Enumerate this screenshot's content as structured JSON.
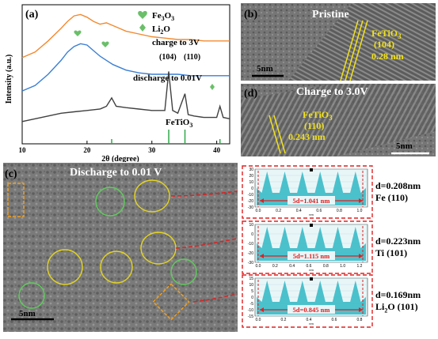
{
  "panel_a": {
    "label": "(a)",
    "ylabel": "Intensity (a.u.)",
    "xlabel": "2θ (degree)",
    "x_ticks": [
      "10",
      "20",
      "30",
      "40"
    ],
    "legend": [
      {
        "name": "Fe2O3",
        "sub": "3",
        "marker": "heart",
        "color": "#6abf69"
      },
      {
        "name": "Li2O",
        "sub": "2",
        "marker": "diamond",
        "color": "#6abf69"
      }
    ],
    "curve_labels": {
      "charge": "charge to 3V",
      "discharge": "discharge to 0.01V",
      "pristine": "FeTiO3"
    },
    "peak_labels": [
      "(104)",
      "(110)"
    ],
    "colors": {
      "charge": "#f28a30",
      "discharge": "#3b7fd4",
      "pristine": "#404040",
      "ref": "#2eaa4a"
    }
  },
  "chart_data": {
    "type": "line",
    "title": "",
    "xlabel": "2θ (degree)",
    "ylabel": "Intensity (a.u.)",
    "xlim": [
      10,
      42
    ],
    "series": [
      {
        "name": "charge to 3V",
        "color": "#f28a30",
        "x": [
          10,
          12,
          14,
          16,
          17,
          18,
          19,
          20,
          21,
          22,
          23,
          24,
          25,
          26,
          28,
          30,
          32,
          34,
          36,
          38,
          40,
          42
        ],
        "y": [
          0.62,
          0.66,
          0.74,
          0.83,
          0.88,
          0.92,
          0.93,
          0.91,
          0.88,
          0.86,
          0.87,
          0.85,
          0.83,
          0.81,
          0.79,
          0.77,
          0.76,
          0.75,
          0.75,
          0.74,
          0.74,
          0.74
        ]
      },
      {
        "name": "discharge to 0.01V",
        "color": "#3b7fd4",
        "x": [
          10,
          12,
          14,
          16,
          17,
          18,
          19,
          20,
          21,
          22,
          23,
          24,
          25,
          26,
          28,
          30,
          32,
          34,
          36,
          38,
          40,
          42
        ],
        "y": [
          0.38,
          0.42,
          0.5,
          0.6,
          0.66,
          0.7,
          0.72,
          0.71,
          0.67,
          0.63,
          0.6,
          0.57,
          0.55,
          0.53,
          0.51,
          0.5,
          0.5,
          0.5,
          0.49,
          0.49,
          0.49,
          0.49
        ]
      },
      {
        "name": "FeTiO3",
        "color": "#404040",
        "x": [
          10,
          12,
          14,
          16,
          18,
          20,
          22,
          23,
          23.8,
          24.5,
          26,
          28,
          30,
          32,
          32.6,
          33.2,
          34,
          35.1,
          35.6,
          36.5,
          38,
          40,
          40.5,
          41,
          42
        ],
        "y": [
          0.16,
          0.18,
          0.2,
          0.22,
          0.23,
          0.24,
          0.25,
          0.27,
          0.33,
          0.27,
          0.26,
          0.25,
          0.24,
          0.24,
          0.52,
          0.24,
          0.22,
          0.36,
          0.21,
          0.2,
          0.19,
          0.19,
          0.27,
          0.19,
          0.18
        ]
      }
    ],
    "reference_peaks": [
      23.8,
      32.6,
      35.1,
      40.5
    ]
  },
  "panel_b": {
    "label": "(b)",
    "title": "Pristine",
    "phase": "FeTiO3",
    "sub": "3",
    "plane": "(104)",
    "spacing": "0.28 nm",
    "scale": "5nm"
  },
  "panel_d": {
    "label": "(d)",
    "title": "Charge to 3.0V",
    "phase": "FeTiO3",
    "sub": "3",
    "plane": "(110)",
    "spacing": "0.243 nm",
    "scale": "5nm"
  },
  "panel_c": {
    "label": "(c)",
    "title": "Discharge to 0.01 V",
    "scale": "5nm"
  },
  "fft_profiles": [
    {
      "marker": "5d=1.041 nm",
      "d": "d=0.208nm",
      "phase": "Fe (110)",
      "sub": "",
      "y_ticks": [
        "30",
        "20",
        "10",
        "0",
        "-10",
        "-20",
        "-30"
      ],
      "x_ticks": [
        "0.0",
        "0.2",
        "0.4",
        "0.6",
        "0.8",
        "1.0"
      ],
      "xunit": "nm",
      "peaks": 6
    },
    {
      "marker": "5d=1.115 nm",
      "d": "d=0.223nm",
      "phase": "Ti (101)",
      "sub": "",
      "y_ticks": [
        "10",
        "0",
        "-10",
        "-20",
        "-30"
      ],
      "x_ticks": [
        "0.0",
        "0.2",
        "0.4",
        "0.6",
        "0.8",
        "1.0",
        "1.2"
      ],
      "xunit": "nm",
      "peaks": 6
    },
    {
      "marker": "5d=0.845 nm",
      "d": "d=0.169nm",
      "phase": "Li2O (101)",
      "sub": "2",
      "y_ticks": [
        "15",
        "10",
        "5",
        "0",
        "-5",
        "-10",
        "-15"
      ],
      "x_ticks": [
        "0.0",
        "0.2",
        "0.4",
        "0.6",
        "0.8"
      ],
      "xunit": "nm",
      "peaks": 6
    }
  ]
}
